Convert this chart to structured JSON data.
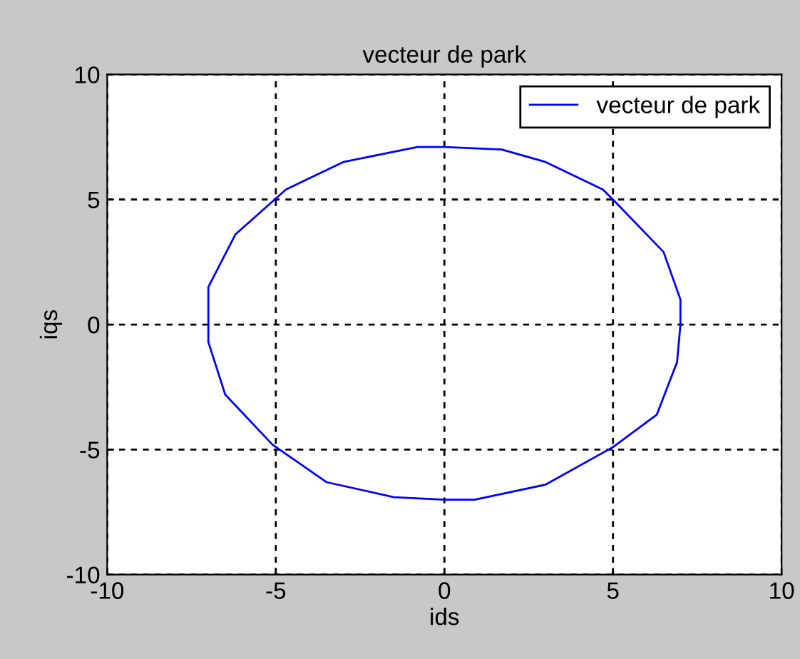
{
  "chart_data": {
    "type": "line",
    "title": "vecteur de park",
    "xlabel": "ids",
    "ylabel": "iqs",
    "xlim": [
      -10,
      10
    ],
    "ylim": [
      -10,
      10
    ],
    "xticks": [
      -10,
      -5,
      0,
      5,
      10
    ],
    "yticks": [
      -10,
      -5,
      0,
      5,
      10
    ],
    "grid": true,
    "legend": "top right",
    "line_style": "solid",
    "series": [
      {
        "name": "vecteur de park",
        "color": "#0000ff",
        "x": [
          -0.8,
          0.0,
          1.7,
          3.0,
          4.7,
          5.0,
          6.5,
          7.0,
          7.0,
          6.9,
          6.3,
          5.0,
          3.0,
          0.9,
          0.0,
          -1.5,
          -3.5,
          -5.1,
          -6.5,
          -7.0,
          -7.0,
          -6.2,
          -4.7,
          -3.0,
          -0.8,
          0.0
        ],
        "values": [
          7.1,
          7.1,
          7.0,
          6.5,
          5.4,
          5.0,
          2.9,
          1.0,
          0.0,
          -1.5,
          -3.6,
          -4.9,
          -6.4,
          -7.0,
          -7.0,
          -6.9,
          -6.3,
          -4.8,
          -2.8,
          -0.7,
          1.5,
          3.6,
          5.4,
          6.5,
          7.1,
          7.1
        ]
      }
    ]
  }
}
